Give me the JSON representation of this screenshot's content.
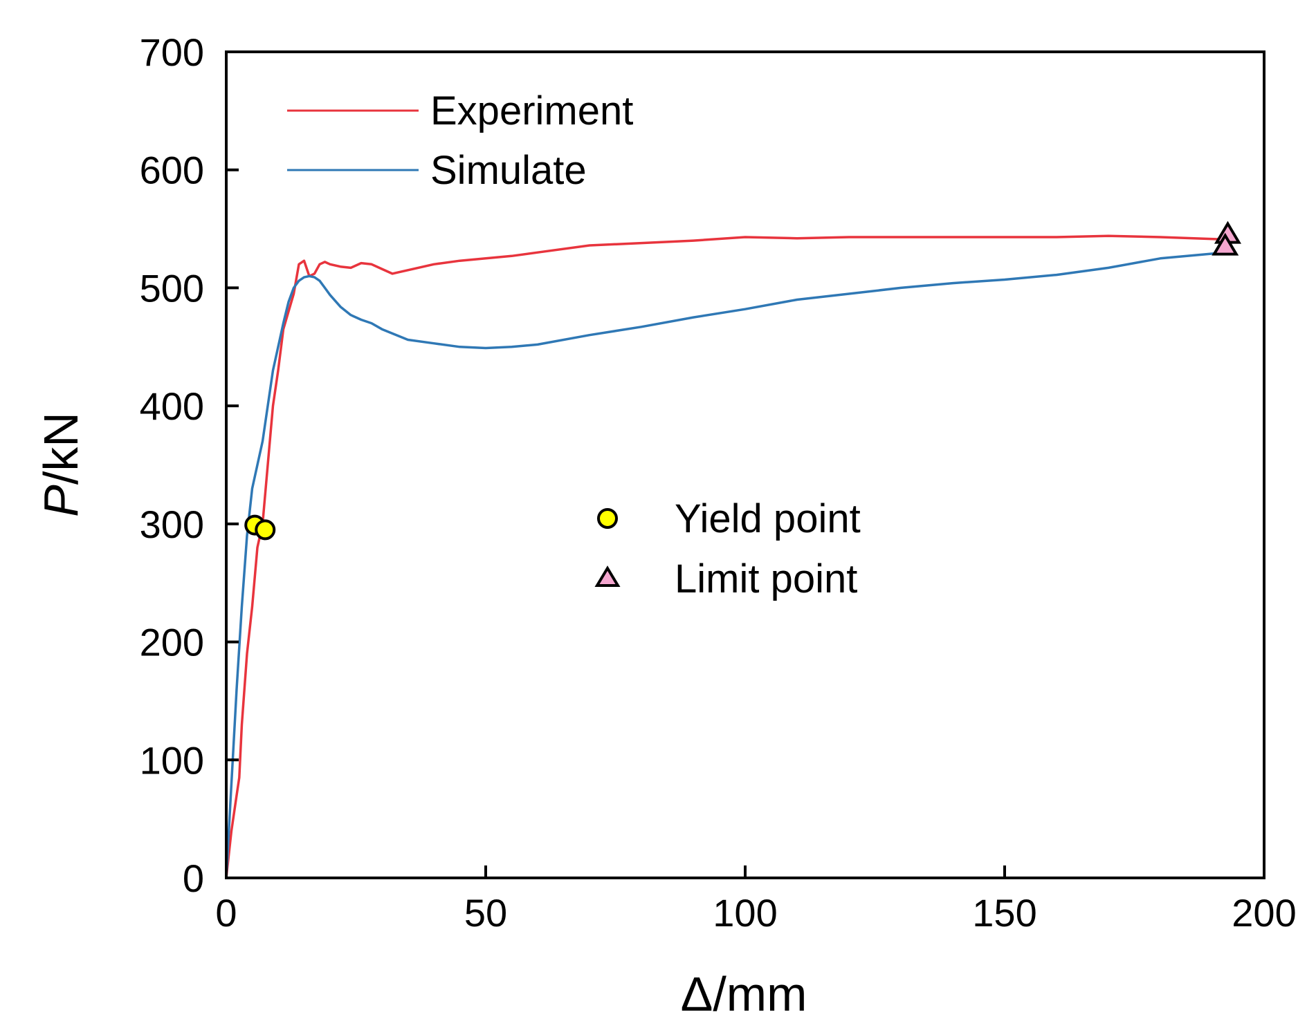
{
  "chart_data": {
    "type": "line",
    "xlabel": "Δ/mm",
    "ylabel_italic": "P",
    "ylabel_unit": "/kN",
    "xlim": [
      0,
      200
    ],
    "ylim": [
      0,
      700
    ],
    "xticks": [
      0,
      50,
      100,
      150,
      200
    ],
    "yticks": [
      0,
      100,
      200,
      300,
      400,
      500,
      600,
      700
    ],
    "grid": false,
    "legend_lines_position": "top-left",
    "legend_markers_position": "center",
    "series": [
      {
        "name": "Experiment",
        "color": "#e8343d",
        "x": [
          0,
          1,
          2,
          2.5,
          3,
          4,
          5,
          6,
          7,
          8,
          9,
          10,
          11,
          12,
          13,
          14,
          15,
          16,
          17,
          18,
          19,
          20,
          22,
          24,
          26,
          28,
          30,
          32,
          33,
          35,
          40,
          45,
          50,
          55,
          60,
          70,
          80,
          90,
          100,
          110,
          120,
          130,
          140,
          150,
          160,
          170,
          180,
          192.5
        ],
        "y": [
          0,
          40,
          70,
          85,
          130,
          190,
          230,
          280,
          300,
          350,
          400,
          430,
          465,
          480,
          495,
          520,
          523,
          510,
          512,
          520,
          522,
          520,
          518,
          517,
          521,
          520,
          516,
          512,
          513,
          515,
          520,
          523,
          525,
          527,
          530,
          536,
          538,
          540,
          543,
          542,
          543,
          543,
          543,
          543,
          543,
          544,
          543,
          541
        ]
      },
      {
        "name": "Simulate",
        "color": "#2f78b5",
        "x": [
          0,
          1,
          2,
          3,
          4,
          5,
          6,
          7,
          8,
          9,
          10,
          11,
          12,
          13,
          14,
          15,
          16,
          17,
          18,
          19,
          20,
          22,
          24,
          26,
          28,
          30,
          35,
          40,
          45,
          50,
          55,
          60,
          70,
          80,
          90,
          100,
          110,
          120,
          130,
          140,
          150,
          160,
          170,
          180,
          192.5
        ],
        "y": [
          0,
          80,
          160,
          230,
          290,
          330,
          350,
          370,
          400,
          430,
          450,
          470,
          488,
          500,
          506,
          509,
          510,
          509,
          506,
          500,
          494,
          484,
          477,
          473,
          470,
          465,
          456,
          453,
          450,
          449,
          450,
          452,
          460,
          467,
          475,
          482,
          490,
          495,
          500,
          504,
          507,
          511,
          517,
          525,
          530
        ]
      }
    ],
    "yield_points": [
      {
        "series": "Simulate",
        "x": 5.5,
        "y": 299
      },
      {
        "series": "Experiment",
        "x": 7.5,
        "y": 295
      }
    ],
    "limit_points": [
      {
        "series": "Experiment",
        "x": 193,
        "y": 545
      },
      {
        "series": "Simulate",
        "x": 192.5,
        "y": 535
      }
    ],
    "markers_legend": [
      {
        "label": "Yield point",
        "shape": "circle",
        "color": "#ffff00"
      },
      {
        "label": "Limit point",
        "shape": "triangle",
        "color": "#f4a6cf"
      }
    ]
  }
}
